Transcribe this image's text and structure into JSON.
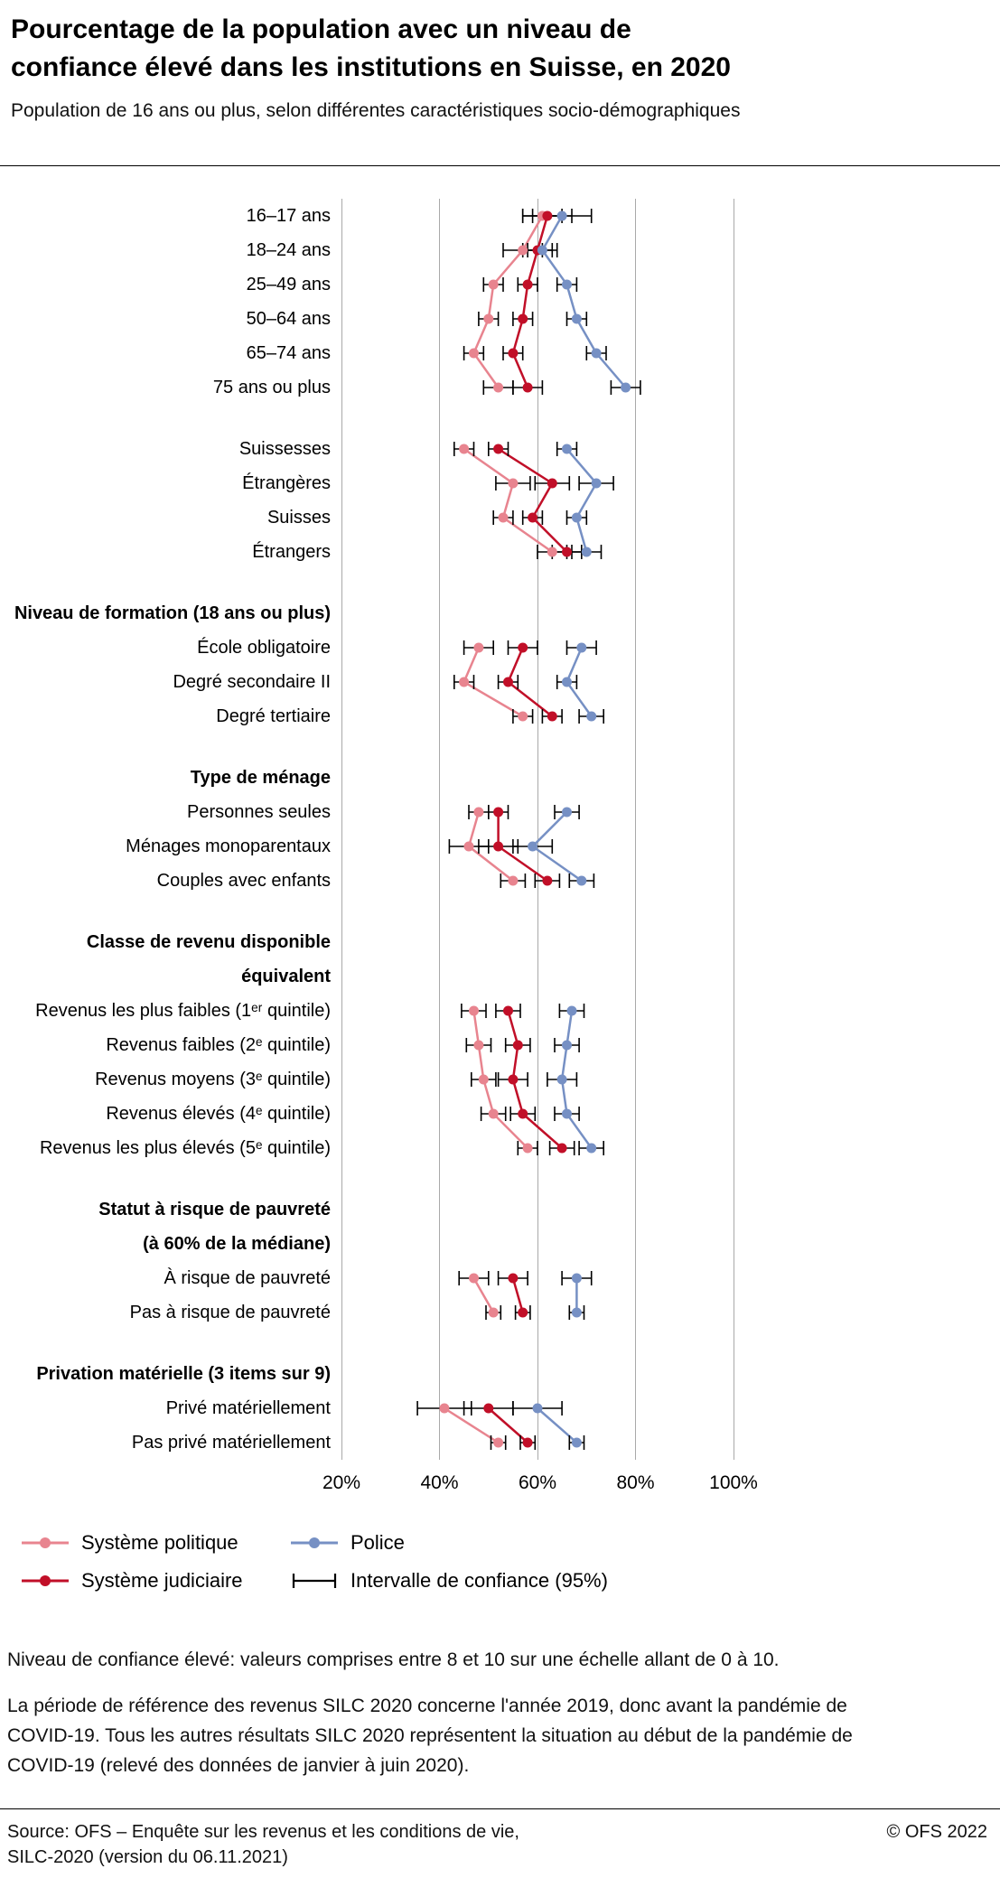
{
  "header": {
    "title_line1": "Pourcentage de la population avec un niveau de",
    "title_line2": "confiance élevé dans les institutions en Suisse, en 2020",
    "subtitle": "Population de 16 ans ou plus, selon différentes caractéristiques socio-démographiques"
  },
  "chart_data": {
    "type": "scatter",
    "subtype": "dot-plot-with-95ci-connected-by-group",
    "unit": "%",
    "x_axis": {
      "min": 20,
      "max": 100,
      "ticks": [
        "20%",
        "40%",
        "60%",
        "80%",
        "100%"
      ],
      "grid": true
    },
    "series_order": [
      "politique",
      "judiciaire",
      "police"
    ],
    "series_meta": {
      "politique": {
        "label": "Système politique",
        "color": "#e8848f"
      },
      "judiciaire": {
        "label": "Système judiciaire",
        "color": "#c10f28"
      },
      "police": {
        "label": "Police",
        "color": "#7690c4"
      }
    },
    "ci_label": "Intervalle de confiance (95%)",
    "value_format": "[estimate_percent, ci_half_width_percent]",
    "groups": [
      {
        "title_lines": [],
        "rows": [
          {
            "label": "16–17 ans",
            "politique": [
              61,
              4
            ],
            "judiciaire": [
              62,
              5
            ],
            "police": [
              65,
              6
            ]
          },
          {
            "label": "18–24 ans",
            "politique": [
              57,
              4
            ],
            "judiciaire": [
              60,
              3
            ],
            "police": [
              61,
              3
            ]
          },
          {
            "label": "25–49 ans",
            "politique": [
              51,
              2
            ],
            "judiciaire": [
              58,
              2
            ],
            "police": [
              66,
              2
            ]
          },
          {
            "label": "50–64 ans",
            "politique": [
              50,
              2
            ],
            "judiciaire": [
              57,
              2
            ],
            "police": [
              68,
              2
            ]
          },
          {
            "label": "65–74 ans",
            "politique": [
              47,
              2
            ],
            "judiciaire": [
              55,
              2
            ],
            "police": [
              72,
              2
            ]
          },
          {
            "label": "75 ans ou plus",
            "politique": [
              52,
              3
            ],
            "judiciaire": [
              58,
              3
            ],
            "police": [
              78,
              3
            ]
          }
        ]
      },
      {
        "title_lines": [],
        "rows": [
          {
            "label": "Suissesses",
            "politique": [
              45,
              2
            ],
            "judiciaire": [
              52,
              2
            ],
            "police": [
              66,
              2
            ]
          },
          {
            "label": "Étrangères",
            "politique": [
              55,
              3.5
            ],
            "judiciaire": [
              63,
              3.5
            ],
            "police": [
              72,
              3.5
            ]
          },
          {
            "label": "Suisses",
            "politique": [
              53,
              2
            ],
            "judiciaire": [
              59,
              2
            ],
            "police": [
              68,
              2
            ]
          },
          {
            "label": "Étrangers",
            "politique": [
              63,
              3
            ],
            "judiciaire": [
              66,
              3
            ],
            "police": [
              70,
              3
            ]
          }
        ]
      },
      {
        "title_lines": [
          "Niveau de formation (18 ans ou plus)"
        ],
        "rows": [
          {
            "label": "École obligatoire",
            "politique": [
              48,
              3
            ],
            "judiciaire": [
              57,
              3
            ],
            "police": [
              69,
              3
            ]
          },
          {
            "label": "Degré secondaire II",
            "politique": [
              45,
              2
            ],
            "judiciaire": [
              54,
              2
            ],
            "police": [
              66,
              2
            ]
          },
          {
            "label": "Degré tertiaire",
            "politique": [
              57,
              2
            ],
            "judiciaire": [
              63,
              2
            ],
            "police": [
              71,
              2.5
            ]
          }
        ]
      },
      {
        "title_lines": [
          "Type de ménage"
        ],
        "rows": [
          {
            "label": "Personnes seules",
            "politique": [
              48,
              2
            ],
            "judiciaire": [
              52,
              2
            ],
            "police": [
              66,
              2.5
            ]
          },
          {
            "label": "Ménages monoparentaux",
            "politique": [
              46,
              4
            ],
            "judiciaire": [
              52,
              4
            ],
            "police": [
              59,
              4
            ]
          },
          {
            "label": "Couples avec enfants",
            "politique": [
              55,
              2.5
            ],
            "judiciaire": [
              62,
              2.5
            ],
            "police": [
              69,
              2.5
            ]
          }
        ]
      },
      {
        "title_lines": [
          "Classe de revenu disponible",
          "équivalent"
        ],
        "rows": [
          {
            "label": "Revenus les plus faibles (1ᵉʳ quintile)",
            "politique": [
              47,
              2.5
            ],
            "judiciaire": [
              54,
              2.5
            ],
            "police": [
              67,
              2.5
            ]
          },
          {
            "label": "Revenus faibles (2ᵉ quintile)",
            "politique": [
              48,
              2.5
            ],
            "judiciaire": [
              56,
              2.5
            ],
            "police": [
              66,
              2.5
            ]
          },
          {
            "label": "Revenus moyens (3ᵉ quintile)",
            "politique": [
              49,
              2.5
            ],
            "judiciaire": [
              55,
              3
            ],
            "police": [
              65,
              3
            ]
          },
          {
            "label": "Revenus élevés (4ᵉ quintile)",
            "politique": [
              51,
              2.5
            ],
            "judiciaire": [
              57,
              2.5
            ],
            "police": [
              66,
              2.5
            ]
          },
          {
            "label": "Revenus les plus élevés (5ᵉ quintile)",
            "politique": [
              58,
              2
            ],
            "judiciaire": [
              65,
              2.5
            ],
            "police": [
              71,
              2.5
            ]
          }
        ]
      },
      {
        "title_lines": [
          "Statut à risque de pauvreté",
          "(à 60% de la médiane)"
        ],
        "rows": [
          {
            "label": "À risque de pauvreté",
            "politique": [
              47,
              3
            ],
            "judiciaire": [
              55,
              3
            ],
            "police": [
              68,
              3
            ]
          },
          {
            "label": "Pas à risque de pauvreté",
            "politique": [
              51,
              1.5
            ],
            "judiciaire": [
              57,
              1.5
            ],
            "police": [
              68,
              1.5
            ]
          }
        ]
      },
      {
        "title_lines": [
          "Privation matérielle (3 items sur 9)"
        ],
        "rows": [
          {
            "label": "Privé matériellement",
            "politique": [
              41,
              5.5
            ],
            "judiciaire": [
              50,
              5
            ],
            "police": [
              60,
              5
            ]
          },
          {
            "label": "Pas privé matériellement",
            "politique": [
              52,
              1.5
            ],
            "judiciaire": [
              58,
              1.5
            ],
            "police": [
              68,
              1.5
            ]
          }
        ]
      }
    ]
  },
  "notes": {
    "note1": "Niveau de confiance élevé: valeurs comprises entre 8 et 10 sur une échelle allant de 0 à 10.",
    "note2": "La période de référence des revenus SILC 2020 concerne l'année 2019, donc avant la pandémie de COVID-19. Tous les autres résultats SILC 2020 représentent la situation au début de la pandémie de COVID-19 (relevé des données de janvier à juin 2020)."
  },
  "footer": {
    "source_line1": "Source: OFS – Enquête sur les revenus et les conditions de vie,",
    "source_line2": "SILC-2020 (version du 06.11.2021)",
    "copyright": "© OFS 2022"
  }
}
